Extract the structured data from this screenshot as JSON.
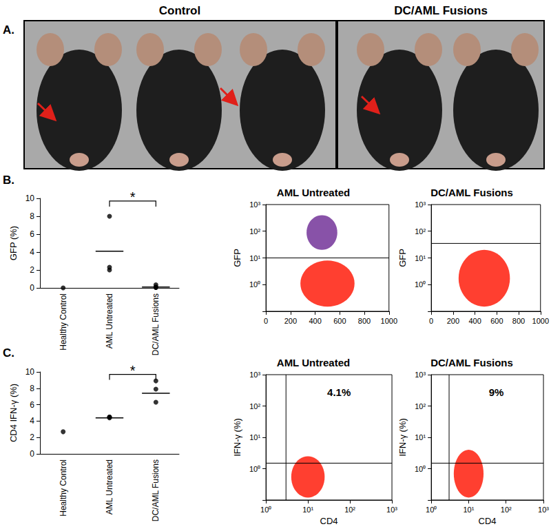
{
  "panel_labels": [
    "A.",
    "B.",
    "C."
  ],
  "photos": {
    "titles": [
      "Control",
      "DC/AML Fusions"
    ]
  },
  "chart_data": [
    {
      "type": "dot",
      "categories": [
        "Healthy Control",
        "AML Untreated",
        "DC/AML Fusions"
      ],
      "y_label": "GFP (%)",
      "ylim": [
        0,
        10
      ],
      "yticks": [
        0,
        2,
        4,
        6,
        8,
        10
      ],
      "values": [
        [
          0
        ],
        [
          8,
          2.3,
          2.0
        ],
        [
          0.05,
          0.05,
          0.1,
          0.35
        ]
      ],
      "means": [
        null,
        4.1,
        0.1
      ],
      "color": "#000000",
      "grid": false,
      "annotations": [
        {
          "text": "*",
          "between": [
            "AML Untreated",
            "DC/AML Fusions"
          ]
        }
      ]
    },
    {
      "type": "scatter",
      "title": "AML Untreated",
      "y_label": "GFP",
      "xlim": [
        0,
        1000
      ],
      "xticks": [
        0,
        200,
        400,
        600,
        800,
        1000
      ],
      "ylim": [
        0.1,
        1000
      ],
      "yticks": [
        {
          "value": 1,
          "label": "10⁰"
        },
        {
          "value": 10,
          "label": "10¹"
        },
        {
          "value": 100,
          "label": "10²"
        },
        {
          "value": 1000,
          "label": "10³"
        }
      ],
      "log": "y",
      "grid": false,
      "gate_y": 10,
      "clusters": [
        {
          "x": [
            280,
            720
          ],
          "y": [
            0.15,
            8
          ],
          "color": "#ff2a1a"
        },
        {
          "x": [
            330,
            580
          ],
          "y": [
            20,
            400
          ],
          "color": "#7b3f9e"
        }
      ]
    },
    {
      "type": "scatter",
      "title": "DC/AML Fusions",
      "y_label": "GFP",
      "xlim": [
        0,
        1000
      ],
      "xticks": [
        0,
        200,
        400,
        600,
        800,
        1000
      ],
      "ylim": [
        0.1,
        1000
      ],
      "yticks": [
        {
          "value": 1,
          "label": "10⁰"
        },
        {
          "value": 10,
          "label": "10¹"
        },
        {
          "value": 100,
          "label": "10²"
        },
        {
          "value": 1000,
          "label": "10³"
        }
      ],
      "log": "y",
      "grid": false,
      "gate_y": 35,
      "clusters": [
        {
          "x": [
            250,
            720
          ],
          "y": [
            0.15,
            20
          ],
          "color": "#ff2a1a"
        }
      ]
    },
    {
      "type": "dot",
      "categories": [
        "Healthy Control",
        "AML Untreated",
        "DC/AML Fusions"
      ],
      "y_label": "CD4 IFN-γ (%)",
      "ylim": [
        0,
        10
      ],
      "yticks": [
        0,
        2,
        4,
        6,
        8,
        10
      ],
      "values": [
        [
          2.7
        ],
        [
          4.5,
          4.4,
          4.5
        ],
        [
          8.9,
          7.9,
          6.3
        ]
      ],
      "means": [
        null,
        4.4,
        7.4
      ],
      "color": "#000000",
      "grid": false,
      "annotations": [
        {
          "text": "*",
          "between": [
            "AML Untreated",
            "DC/AML Fusions"
          ]
        }
      ]
    },
    {
      "type": "scatter",
      "title": "AML Untreated",
      "x_label": "CD4",
      "y_label": "IFN-γ (%)",
      "xlim": [
        1,
        1000
      ],
      "xticks": [
        {
          "value": 1,
          "label": "10⁰"
        },
        {
          "value": 10,
          "label": "10¹"
        },
        {
          "value": 100,
          "label": "10²"
        },
        {
          "value": 1000,
          "label": "10³"
        }
      ],
      "ylim": [
        0.1,
        1000
      ],
      "yticks": [
        {
          "value": 1,
          "label": "10⁰"
        },
        {
          "value": 10,
          "label": "10¹"
        },
        {
          "value": 100,
          "label": "10²"
        },
        {
          "value": 1000,
          "label": "10³"
        }
      ],
      "log": true,
      "grid": false,
      "gate_x": 3,
      "gate_y": 1.5,
      "quadrant_label": "4.1%",
      "clusters": [
        {
          "x": [
            4,
            25
          ],
          "y": [
            0.12,
            2.5
          ],
          "color": "#ff2a1a"
        }
      ]
    },
    {
      "type": "scatter",
      "title": "DC/AML Fusions",
      "x_label": "CD4",
      "y_label": "IFN-γ (%)",
      "xlim": [
        1,
        1000
      ],
      "xticks": [
        {
          "value": 1,
          "label": "10⁰"
        },
        {
          "value": 10,
          "label": "10¹"
        },
        {
          "value": 100,
          "label": "10²"
        },
        {
          "value": 1000,
          "label": "10³"
        }
      ],
      "ylim": [
        0.1,
        1000
      ],
      "yticks": [
        {
          "value": 1,
          "label": "10⁰"
        },
        {
          "value": 10,
          "label": "10¹"
        },
        {
          "value": 100,
          "label": "10²"
        },
        {
          "value": 1000,
          "label": "10³"
        }
      ],
      "log": true,
      "grid": false,
      "gate_x": 3,
      "gate_y": 1.5,
      "quadrant_label": "9%",
      "clusters": [
        {
          "x": [
            4,
            25
          ],
          "y": [
            0.12,
            4
          ],
          "color": "#ff2a1a"
        }
      ]
    }
  ]
}
